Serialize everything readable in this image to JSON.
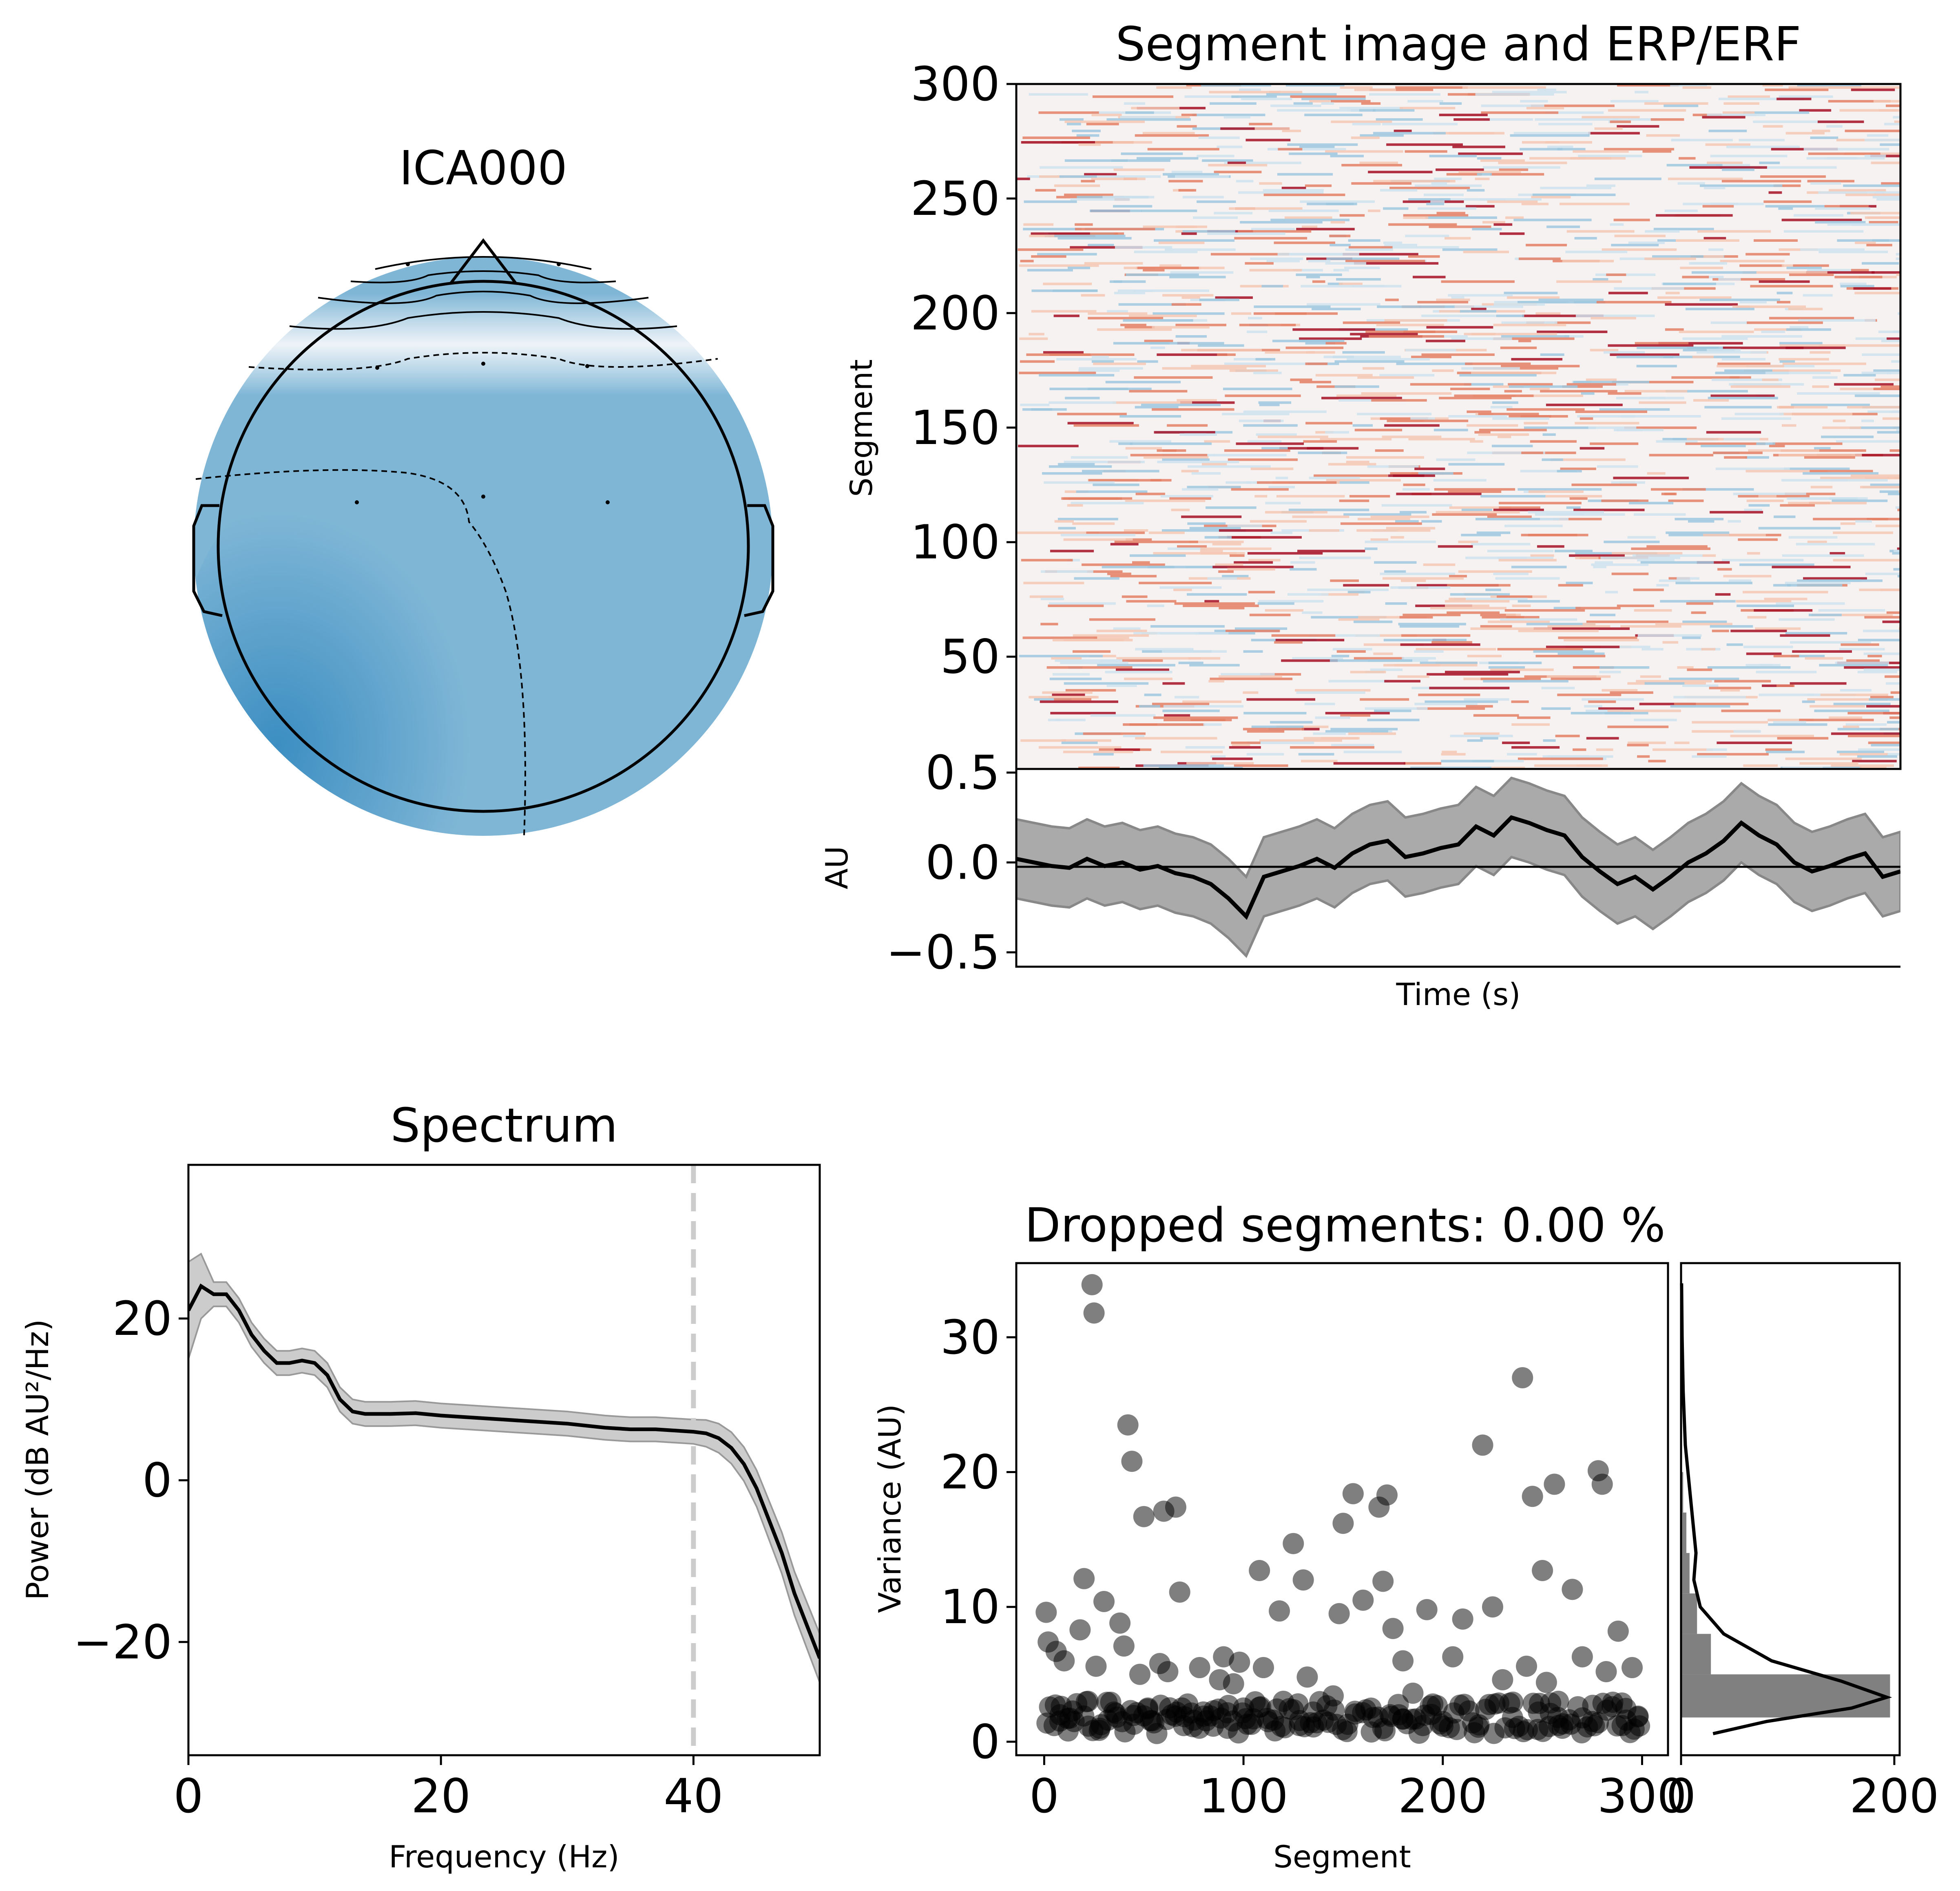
{
  "topomap": {
    "title": "ICA000"
  },
  "segment_image": {
    "title": "Segment image and ERP/ERF",
    "ylabel": "Segment",
    "yticks": [
      "50",
      "100",
      "150",
      "200",
      "250",
      "300"
    ]
  },
  "erp": {
    "ylabel": "AU",
    "xlabel": "Time (s)",
    "yticks": [
      "0.5",
      "0.0",
      "−0.5"
    ]
  },
  "spectrum": {
    "title": "Spectrum",
    "xlabel": "Frequency (Hz)",
    "ylabel": "Power (dB AU²/Hz)",
    "xticks": [
      "0",
      "20",
      "40"
    ],
    "yticks": [
      "20",
      "0",
      "−20"
    ]
  },
  "dropped": {
    "title": "Dropped segments: 0.00 %",
    "xlabel": "Segment",
    "ylabel": "Variance (AU)",
    "xticks": [
      "0",
      "100",
      "200",
      "300"
    ],
    "yticks": [
      "0",
      "10",
      "20",
      "30"
    ],
    "hist_xticks": [
      "0",
      "200"
    ]
  },
  "chart_data": [
    {
      "type": "heatmap",
      "panel": "segment_image",
      "title": "Segment image and ERP/ERF",
      "ylabel": "Segment",
      "ylim": [
        1,
        300
      ],
      "rows": 300,
      "colormap": "RdBu_r"
    },
    {
      "type": "line",
      "panel": "erp",
      "ylabel": "AU",
      "xlabel": "Time (s)",
      "ylim": [
        -0.58,
        0.52
      ],
      "x": [
        0,
        0.02,
        0.04,
        0.06,
        0.08,
        0.1,
        0.12,
        0.14,
        0.16,
        0.18,
        0.2,
        0.22,
        0.24,
        0.26,
        0.28,
        0.3,
        0.32,
        0.34,
        0.36,
        0.38,
        0.4,
        0.42,
        0.44,
        0.46,
        0.48,
        0.5,
        0.52,
        0.54,
        0.56,
        0.58,
        0.6,
        0.62,
        0.64,
        0.66,
        0.68,
        0.7,
        0.72,
        0.74,
        0.76,
        0.78,
        0.8,
        0.82,
        0.84,
        0.86,
        0.88,
        0.9,
        0.92,
        0.94,
        0.96,
        0.98,
        1.0
      ],
      "series": [
        {
          "values": [
            0.02,
            0.0,
            -0.02,
            -0.03,
            0.02,
            -0.02,
            0.0,
            -0.04,
            -0.02,
            -0.06,
            -0.08,
            -0.12,
            -0.2,
            -0.3,
            -0.08,
            -0.05,
            -0.02,
            0.02,
            -0.03,
            0.05,
            0.1,
            0.12,
            0.03,
            0.05,
            0.08,
            0.1,
            0.2,
            0.15,
            0.25,
            0.22,
            0.18,
            0.15,
            0.03,
            -0.05,
            -0.12,
            -0.08,
            -0.15,
            -0.08,
            0.0,
            0.05,
            0.12,
            0.22,
            0.15,
            0.1,
            0.0,
            -0.05,
            -0.02,
            0.02,
            0.05,
            -0.08,
            -0.05
          ]
        }
      ],
      "band": {
        "half_width": 0.22
      },
      "hline": 0
    },
    {
      "type": "line",
      "panel": "spectrum",
      "title": "Spectrum",
      "xlabel": "Frequency (Hz)",
      "ylabel": "Power (dB AU²/Hz)",
      "xlim": [
        0,
        50
      ],
      "ylim": [
        -34,
        39
      ],
      "x": [
        0,
        1,
        2,
        3,
        4,
        5,
        6,
        7,
        8,
        9,
        10,
        11,
        12,
        13,
        14,
        15,
        16,
        18,
        20,
        22,
        25,
        28,
        30,
        33,
        35,
        37,
        38,
        39,
        40,
        41,
        42,
        43,
        44,
        45,
        46,
        47,
        48,
        49,
        50
      ],
      "series": [
        {
          "values": [
            21,
            24,
            23,
            23,
            21,
            18,
            16,
            14.5,
            14.5,
            14.8,
            14.5,
            13,
            10,
            8.5,
            8.2,
            8.2,
            8.2,
            8.3,
            8,
            7.8,
            7.5,
            7.2,
            7,
            6.5,
            6.3,
            6.3,
            6.2,
            6.1,
            6,
            5.8,
            5.2,
            4,
            2,
            -1,
            -5,
            -9,
            -14,
            -18,
            -22
          ]
        }
      ],
      "band": {
        "half_width": 1.5,
        "wide_start_half_width": 6
      },
      "vline": 40
    },
    {
      "type": "scatter",
      "panel": "dropped",
      "title": "Dropped segments: 0.00 %",
      "xlabel": "Segment",
      "ylabel": "Variance (AU)",
      "xlim": [
        -14,
        313
      ],
      "ylim": [
        -1,
        35.5
      ],
      "x": [
        1,
        2,
        5,
        6,
        8,
        10,
        12,
        15,
        18,
        20,
        22,
        24,
        25,
        26,
        28,
        30,
        32,
        35,
        38,
        40,
        42,
        44,
        45,
        48,
        50,
        52,
        55,
        58,
        60,
        62,
        64,
        66,
        68,
        70,
        72,
        75,
        78,
        80,
        85,
        88,
        90,
        92,
        95,
        98,
        100,
        102,
        105,
        108,
        110,
        115,
        118,
        120,
        125,
        128,
        130,
        132,
        135,
        140,
        145,
        148,
        150,
        155,
        160,
        165,
        168,
        170,
        172,
        175,
        178,
        180,
        185,
        190,
        192,
        195,
        200,
        205,
        210,
        215,
        220,
        225,
        230,
        235,
        240,
        242,
        245,
        248,
        250,
        252,
        254,
        256,
        258,
        260,
        265,
        270,
        275,
        278,
        280,
        282,
        285,
        288,
        290,
        292,
        295,
        298
      ],
      "y": [
        9.6,
        7.4,
        1.2,
        6.7,
        2.0,
        6.0,
        0.8,
        1.5,
        8.3,
        12.1,
        3.0,
        33.9,
        31.8,
        5.6,
        1.0,
        10.4,
        1.6,
        2.2,
        8.8,
        7.1,
        23.5,
        20.8,
        1.3,
        5.0,
        16.7,
        2.5,
        1.4,
        5.8,
        17.1,
        5.2,
        2.0,
        17.4,
        11.1,
        1.2,
        2.8,
        1.6,
        5.5,
        1.9,
        2.3,
        4.6,
        6.3,
        1.0,
        4.3,
        5.9,
        2.5,
        1.3,
        1.7,
        12.7,
        5.5,
        1.6,
        9.7,
        3.0,
        14.7,
        1.2,
        12.0,
        4.8,
        2.2,
        1.6,
        3.4,
        9.5,
        16.2,
        18.4,
        10.5,
        1.8,
        17.4,
        11.9,
        18.3,
        8.4,
        2.0,
        6.0,
        3.6,
        1.2,
        9.8,
        2.8,
        1.5,
        6.3,
        9.1,
        1.4,
        22.0,
        10.0,
        4.6,
        1.8,
        27.0,
        5.6,
        18.2,
        2.2,
        12.7,
        4.4,
        2.1,
        19.1,
        3.0,
        1.0,
        11.3,
        6.3,
        1.5,
        20.1,
        19.1,
        5.2,
        2.6,
        8.2,
        1.2,
        1.6,
        5.5,
        1.9
      ]
    },
    {
      "type": "bar",
      "panel": "dropped_histogram",
      "orientation": "horizontal",
      "xlim": [
        0,
        205
      ],
      "bin_edges": [
        1.8,
        5.0,
        8.0,
        11.0,
        14.0,
        17.0,
        20.0,
        23.0,
        26.0,
        29.0,
        32.0,
        35.0
      ],
      "values": [
        196,
        28,
        15,
        8,
        5,
        2,
        1,
        1,
        0,
        0,
        1
      ],
      "kde": {
        "y": [
          0.6,
          1.5,
          2.5,
          3.3,
          4.5,
          6.0,
          8.0,
          10.0,
          12.0,
          14.0,
          18.0,
          22.0,
          26.0,
          30.0,
          34.0
        ],
        "x": [
          30,
          80,
          160,
          193,
          150,
          85,
          40,
          18,
          12,
          14,
          9,
          4,
          2,
          1,
          0.5
        ]
      }
    }
  ]
}
